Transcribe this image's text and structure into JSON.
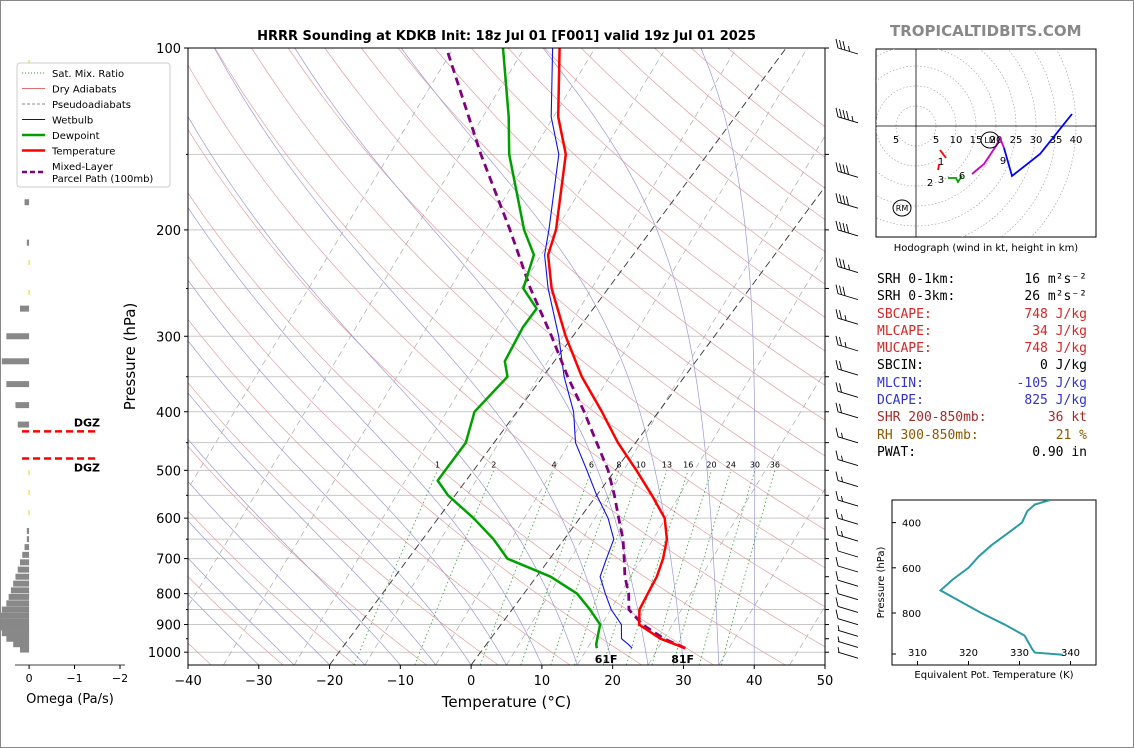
{
  "brand": "TROPICALTIDBITS.COM",
  "chart_data": {
    "type": "skew-t",
    "title": "HRRR Sounding at KDKB Init: 18z Jul 01 [F001] valid 19z Jul 01 2025",
    "xlabel": "Temperature (°C)",
    "ylabel": "Pressure (hPa)",
    "xlim": [
      -40,
      50
    ],
    "ylim": [
      1050,
      100
    ],
    "x_ticks": [
      "−40",
      "−30",
      "−20",
      "−10",
      "0",
      "10",
      "20",
      "30",
      "40",
      "50"
    ],
    "y_ticks": [
      "1000",
      "900",
      "800",
      "700",
      "600",
      "500",
      "400",
      "300",
      "200",
      "100"
    ],
    "legend": [
      {
        "label": "Sat. Mix. Ratio",
        "color": "#2ca02c",
        "style": "dotted"
      },
      {
        "label": "Dry Adiabats",
        "color": "#e07070",
        "style": "solid-thin"
      },
      {
        "label": "Pseudoadiabats",
        "color": "#888888",
        "style": "dashed"
      },
      {
        "label": "Wetbulb",
        "color": "#0000ff",
        "style": "solid-thin"
      },
      {
        "label": "Dewpoint",
        "color": "#00a000",
        "style": "solid"
      },
      {
        "label": "Temperature",
        "color": "#ff0000",
        "style": "solid"
      },
      {
        "label": "Mixed-Layer\nParcel Path (100mb)",
        "color": "#800080",
        "style": "dashed"
      }
    ],
    "mixing_ratio_labels": [
      "1",
      "2",
      "4",
      "6",
      "8",
      "10",
      "13",
      "16",
      "20",
      "24",
      "30",
      "36"
    ],
    "surface_temp_label": "81F",
    "surface_dewpoint_label": "61F",
    "dgz_label": "DGZ",
    "dgz_levels_hpa": [
      431,
      478
    ],
    "temperature": [
      [
        985,
        28.5
      ],
      [
        950,
        24
      ],
      [
        900,
        19.5
      ],
      [
        850,
        18
      ],
      [
        800,
        17.5
      ],
      [
        750,
        17
      ],
      [
        700,
        16
      ],
      [
        650,
        14.5
      ],
      [
        600,
        12
      ],
      [
        550,
        7.8
      ],
      [
        500,
        3
      ],
      [
        450,
        -2.5
      ],
      [
        400,
        -8
      ],
      [
        350,
        -14.5
      ],
      [
        300,
        -21
      ],
      [
        250,
        -28
      ],
      [
        220,
        -32
      ],
      [
        200,
        -33.5
      ],
      [
        150,
        -40
      ],
      [
        130,
        -45
      ],
      [
        100,
        -52
      ]
    ],
    "dewpoint": [
      [
        985,
        16
      ],
      [
        970,
        15.5
      ],
      [
        900,
        14
      ],
      [
        850,
        11
      ],
      [
        800,
        7.5
      ],
      [
        750,
        2
      ],
      [
        700,
        -6
      ],
      [
        650,
        -10
      ],
      [
        600,
        -15
      ],
      [
        550,
        -21
      ],
      [
        520,
        -24
      ],
      [
        500,
        -24
      ],
      [
        450,
        -24
      ],
      [
        400,
        -26
      ],
      [
        350,
        -25
      ],
      [
        330,
        -27
      ],
      [
        290,
        -28
      ],
      [
        270,
        -28
      ],
      [
        250,
        -32
      ],
      [
        220,
        -34
      ],
      [
        200,
        -38
      ],
      [
        150,
        -48
      ],
      [
        130,
        -52
      ],
      [
        100,
        -60
      ]
    ],
    "wetbulb": [
      [
        985,
        21
      ],
      [
        970,
        20
      ],
      [
        950,
        18.5
      ],
      [
        900,
        17
      ],
      [
        850,
        14
      ],
      [
        800,
        11.5
      ],
      [
        750,
        9
      ],
      [
        700,
        8
      ],
      [
        650,
        7
      ],
      [
        600,
        4
      ],
      [
        550,
        0
      ],
      [
        500,
        -4
      ],
      [
        450,
        -8.5
      ],
      [
        400,
        -12
      ],
      [
        350,
        -17
      ],
      [
        300,
        -22
      ],
      [
        250,
        -28.5
      ],
      [
        220,
        -32.5
      ],
      [
        200,
        -34.5
      ],
      [
        150,
        -41
      ],
      [
        130,
        -46
      ],
      [
        100,
        -53
      ]
    ],
    "parcel_path": [
      [
        985,
        28.5
      ],
      [
        950,
        24.5
      ],
      [
        900,
        20
      ],
      [
        850,
        16.5
      ],
      [
        800,
        14.8
      ],
      [
        750,
        12.5
      ],
      [
        700,
        10.5
      ],
      [
        650,
        8.3
      ],
      [
        600,
        5.5
      ],
      [
        550,
        2.5
      ],
      [
        500,
        -1
      ],
      [
        450,
        -5.5
      ],
      [
        400,
        -10.5
      ],
      [
        350,
        -16.5
      ],
      [
        300,
        -23
      ],
      [
        250,
        -31
      ],
      [
        200,
        -40
      ],
      [
        150,
        -52
      ],
      [
        100,
        -68
      ]
    ],
    "wind_barbs_kt": [
      {
        "p": 100,
        "kt": 35
      },
      {
        "p": 130,
        "kt": 45
      },
      {
        "p": 160,
        "kt": 40
      },
      {
        "p": 180,
        "kt": 40
      },
      {
        "p": 200,
        "kt": 40
      },
      {
        "p": 230,
        "kt": 35
      },
      {
        "p": 255,
        "kt": 30
      },
      {
        "p": 280,
        "kt": 25
      },
      {
        "p": 310,
        "kt": 25
      },
      {
        "p": 340,
        "kt": 20
      },
      {
        "p": 370,
        "kt": 20
      },
      {
        "p": 400,
        "kt": 20
      },
      {
        "p": 440,
        "kt": 15
      },
      {
        "p": 480,
        "kt": 15
      },
      {
        "p": 520,
        "kt": 15
      },
      {
        "p": 560,
        "kt": 15
      },
      {
        "p": 600,
        "kt": 15
      },
      {
        "p": 640,
        "kt": 15
      },
      {
        "p": 680,
        "kt": 10
      },
      {
        "p": 720,
        "kt": 10
      },
      {
        "p": 760,
        "kt": 10
      },
      {
        "p": 800,
        "kt": 10
      },
      {
        "p": 840,
        "kt": 10
      },
      {
        "p": 880,
        "kt": 10
      },
      {
        "p": 920,
        "kt": 5
      },
      {
        "p": 960,
        "kt": 5
      },
      {
        "p": 1000,
        "kt": 5
      }
    ],
    "omega": {
      "xlabel": "Omega (Pa/s)",
      "x_ticks": [
        "0",
        "−1",
        "−2"
      ],
      "xlim": [
        0.2,
        -2
      ],
      "profile": [
        [
          990,
          0.2
        ],
        [
          970,
          0.35
        ],
        [
          950,
          0.5
        ],
        [
          930,
          0.6
        ],
        [
          910,
          0.7
        ],
        [
          890,
          0.75
        ],
        [
          870,
          0.7
        ],
        [
          850,
          0.6
        ],
        [
          830,
          0.5
        ],
        [
          810,
          0.45
        ],
        [
          790,
          0.4
        ],
        [
          770,
          0.35
        ],
        [
          750,
          0.3
        ],
        [
          730,
          0.25
        ],
        [
          710,
          0.2
        ],
        [
          690,
          0.15
        ],
        [
          670,
          0.1
        ],
        [
          650,
          0.05
        ],
        [
          630,
          0.05
        ],
        [
          420,
          0.25
        ],
        [
          390,
          0.3
        ],
        [
          360,
          0.5
        ],
        [
          330,
          0.6
        ],
        [
          300,
          0.5
        ],
        [
          270,
          0.2
        ],
        [
          210,
          0.05
        ],
        [
          180,
          0.1
        ],
        [
          160,
          0.15
        ],
        [
          140,
          0.2
        ]
      ]
    },
    "hodograph": {
      "caption": "Hodograph (wind in kt, height in km)",
      "rings_kt": [
        5,
        10,
        15,
        20,
        25,
        30,
        35,
        40
      ],
      "ring_labels": [
        "5",
        "10",
        "15",
        "20",
        "25",
        "30",
        "35",
        "40"
      ],
      "left_label": "5",
      "storm_motion_labels": [
        "LM",
        "RM"
      ],
      "height_labels": [
        "1",
        "2",
        "3",
        "6",
        "9"
      ],
      "trace": [
        {
          "color": "#ff0000",
          "points": [
            [
              6,
              -6
            ],
            [
              7.5,
              -8
            ]
          ]
        },
        {
          "color": "#ff0000",
          "points": [
            [
              5.8,
              -9.5
            ],
            [
              5.5,
              -11
            ]
          ]
        },
        {
          "color": "#00a000",
          "points": [
            [
              8,
              -13
            ],
            [
              10,
              -13
            ],
            [
              10.5,
              -14
            ],
            [
              11.5,
              -12.5
            ]
          ]
        },
        {
          "color": "#cc00cc",
          "points": [
            [
              14,
              -12
            ],
            [
              17,
              -9.5
            ],
            [
              20,
              -5
            ],
            [
              21,
              -3
            ],
            [
              22,
              -5.5
            ]
          ]
        },
        {
          "color": "#0000ff",
          "points": [
            [
              22,
              -5.5
            ],
            [
              24,
              -12.5
            ],
            [
              31,
              -7
            ],
            [
              39,
              3
            ]
          ]
        }
      ],
      "lm": [
        18.5,
        -3.5
      ],
      "rm": [
        -3.5,
        -20.5
      ]
    },
    "theta_e": {
      "xlabel": "Equivalent Pot. Temperature (K)",
      "ylabel": "Pressure (hPa)",
      "x_ticks": [
        "310",
        "320",
        "330",
        "340"
      ],
      "y_ticks": [
        "400",
        "600",
        "800"
      ],
      "xlim": [
        305,
        345
      ],
      "ylim": [
        1030,
        300
      ],
      "profile": [
        [
          985,
          338.5
        ],
        [
          975,
          333
        ],
        [
          960,
          332.5
        ],
        [
          900,
          331
        ],
        [
          850,
          327
        ],
        [
          800,
          322.5
        ],
        [
          750,
          318.5
        ],
        [
          700,
          314.5
        ],
        [
          650,
          317
        ],
        [
          600,
          320
        ],
        [
          550,
          322
        ],
        [
          500,
          324.5
        ],
        [
          450,
          327.5
        ],
        [
          400,
          330.5
        ],
        [
          350,
          331.5
        ],
        [
          320,
          333
        ],
        [
          300,
          336
        ]
      ]
    },
    "parameters": [
      {
        "label": "SRH 0-1km:",
        "value": "16 m²s⁻²",
        "color": "#000000"
      },
      {
        "label": "SRH 0-3km:",
        "value": "26 m²s⁻²",
        "color": "#000000"
      },
      {
        "label": "SBCAPE:",
        "value": "748 J/kg",
        "color": "#d62728"
      },
      {
        "label": "MLCAPE:",
        "value": "34 J/kg",
        "color": "#d62728"
      },
      {
        "label": "MUCAPE:",
        "value": "748 J/kg",
        "color": "#d62728"
      },
      {
        "label": "SBCIN:",
        "value": "0 J/kg",
        "color": "#000000"
      },
      {
        "label": "MLCIN:",
        "value": "-105 J/kg",
        "color": "#3333cc"
      },
      {
        "label": "DCAPE:",
        "value": "825 J/kg",
        "color": "#3333cc"
      },
      {
        "label": "SHR 200-850mb:",
        "value": "36 kt",
        "color": "#a52a2a"
      },
      {
        "label": "RH 300-850mb:",
        "value": "21 %",
        "color": "#8b5a00"
      },
      {
        "label": "PWAT:",
        "value": "0.90 in",
        "color": "#000000"
      }
    ]
  }
}
